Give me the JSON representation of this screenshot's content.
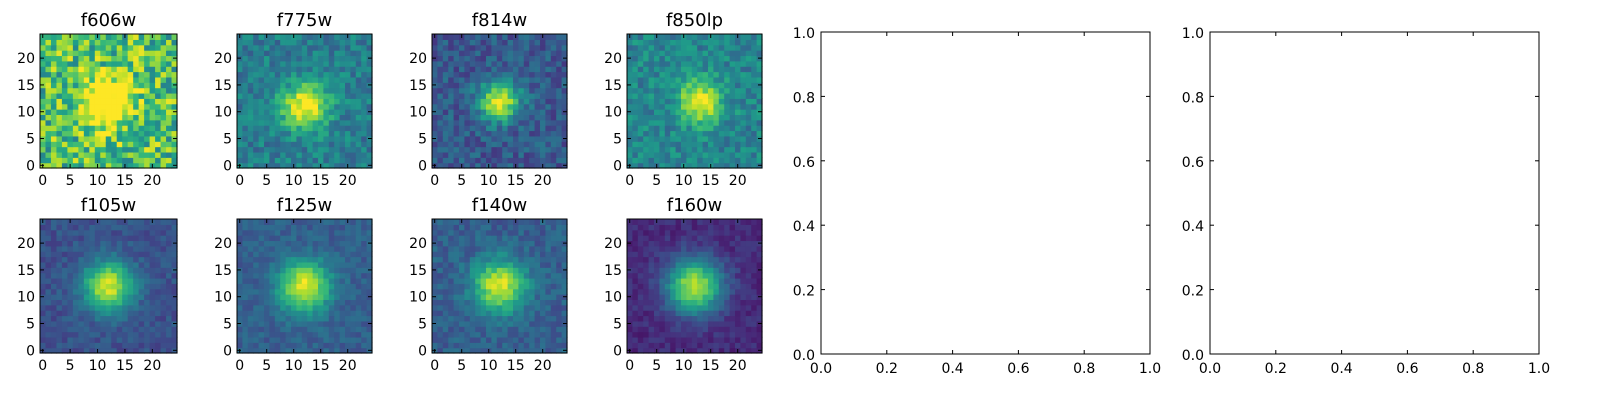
{
  "chart_data": [
    {
      "type": "heatmap",
      "title": "f606w",
      "grid_size": 25,
      "xticks": [
        "0",
        "5",
        "10",
        "15",
        "20"
      ],
      "yticks": [
        "0",
        "5",
        "10",
        "15",
        "20"
      ],
      "colormap": "viridis",
      "center": [
        12,
        12
      ],
      "peak": 0.62,
      "sigma": 3.2,
      "background": 0.7,
      "noise": 0.45
    },
    {
      "type": "heatmap",
      "title": "f775w",
      "grid_size": 25,
      "xticks": [
        "0",
        "5",
        "10",
        "15",
        "20"
      ],
      "yticks": [
        "0",
        "5",
        "10",
        "15",
        "20"
      ],
      "colormap": "viridis",
      "center": [
        12,
        11
      ],
      "peak": 0.62,
      "sigma": 3.0,
      "background": 0.42,
      "noise": 0.22
    },
    {
      "type": "heatmap",
      "title": "f814w",
      "grid_size": 25,
      "xticks": [
        "0",
        "5",
        "10",
        "15",
        "20"
      ],
      "yticks": [
        "0",
        "5",
        "10",
        "15",
        "20"
      ],
      "colormap": "viridis",
      "center": [
        12,
        12
      ],
      "peak": 0.7,
      "sigma": 2.6,
      "background": 0.28,
      "noise": 0.2
    },
    {
      "type": "heatmap",
      "title": "f850lp",
      "grid_size": 25,
      "xticks": [
        "0",
        "5",
        "10",
        "15",
        "20"
      ],
      "yticks": [
        "0",
        "5",
        "10",
        "15",
        "20"
      ],
      "colormap": "viridis",
      "center": [
        13,
        12
      ],
      "peak": 0.55,
      "sigma": 2.8,
      "background": 0.45,
      "noise": 0.22
    },
    {
      "type": "heatmap",
      "title": "f105w",
      "grid_size": 25,
      "xticks": [
        "0",
        "5",
        "10",
        "15",
        "20"
      ],
      "yticks": [
        "0",
        "5",
        "10",
        "15",
        "20"
      ],
      "colormap": "viridis",
      "center": [
        12,
        12
      ],
      "peak": 0.7,
      "sigma": 3.2,
      "background": 0.25,
      "noise": 0.12
    },
    {
      "type": "heatmap",
      "title": "f125w",
      "grid_size": 25,
      "xticks": [
        "0",
        "5",
        "10",
        "15",
        "20"
      ],
      "yticks": [
        "0",
        "5",
        "10",
        "15",
        "20"
      ],
      "colormap": "viridis",
      "center": [
        12,
        12
      ],
      "peak": 0.68,
      "sigma": 3.3,
      "background": 0.3,
      "noise": 0.12
    },
    {
      "type": "heatmap",
      "title": "f140w",
      "grid_size": 25,
      "xticks": [
        "0",
        "5",
        "10",
        "15",
        "20"
      ],
      "yticks": [
        "0",
        "5",
        "10",
        "15",
        "20"
      ],
      "colormap": "viridis",
      "center": [
        12,
        12
      ],
      "peak": 0.66,
      "sigma": 3.4,
      "background": 0.3,
      "noise": 0.14
    },
    {
      "type": "heatmap",
      "title": "f160w",
      "grid_size": 25,
      "xticks": [
        "0",
        "5",
        "10",
        "15",
        "20"
      ],
      "yticks": [
        "0",
        "5",
        "10",
        "15",
        "20"
      ],
      "colormap": "viridis",
      "center": [
        12,
        12
      ],
      "peak": 0.78,
      "sigma": 3.6,
      "background": 0.12,
      "noise": 0.1
    },
    {
      "type": "line",
      "title": "",
      "series": [],
      "xlim": [
        0,
        1
      ],
      "ylim": [
        0,
        1
      ],
      "xticks": [
        "0.0",
        "0.2",
        "0.4",
        "0.6",
        "0.8",
        "1.0"
      ],
      "yticks": [
        "0.0",
        "0.2",
        "0.4",
        "0.6",
        "0.8",
        "1.0"
      ]
    },
    {
      "type": "line",
      "title": "",
      "series": [],
      "xlim": [
        0,
        1
      ],
      "ylim": [
        0,
        1
      ],
      "xticks": [
        "0.0",
        "0.2",
        "0.4",
        "0.6",
        "0.8",
        "1.0"
      ],
      "yticks": [
        "0.0",
        "0.2",
        "0.4",
        "0.6",
        "0.8",
        "1.0"
      ]
    }
  ]
}
